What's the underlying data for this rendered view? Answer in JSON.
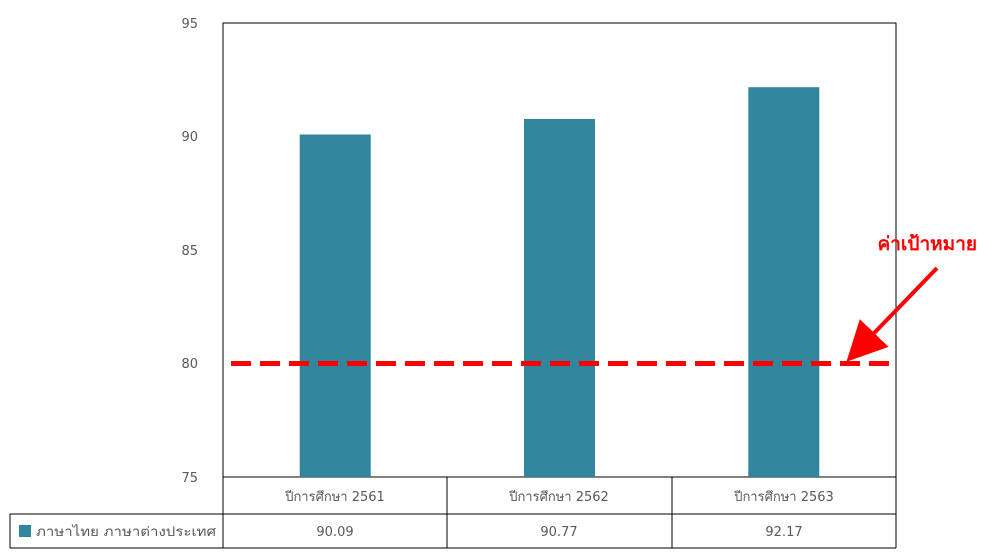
{
  "chart_data": {
    "type": "bar",
    "categories": [
      "ปีการศึกษา 2561",
      "ปีการศึกษา 2562",
      "ปีการศึกษา 2563"
    ],
    "series": [
      {
        "name": "ภาษาไทย ภาษาต่างประเทศ",
        "values": [
          90.09,
          90.77,
          92.17
        ],
        "value_labels": [
          "90.09",
          "90.77",
          "92.17"
        ],
        "color": "#31859c"
      }
    ],
    "ylim": [
      75,
      95
    ],
    "yticks": [
      75,
      80,
      85,
      90,
      95
    ],
    "ytick_labels": [
      "75",
      "80",
      "85",
      "90",
      "95"
    ],
    "grid": false,
    "data_table": true,
    "target": {
      "value": 80,
      "label": "ค่าเป้าหมาย",
      "color": "#ff0000",
      "style": "dashed"
    }
  }
}
